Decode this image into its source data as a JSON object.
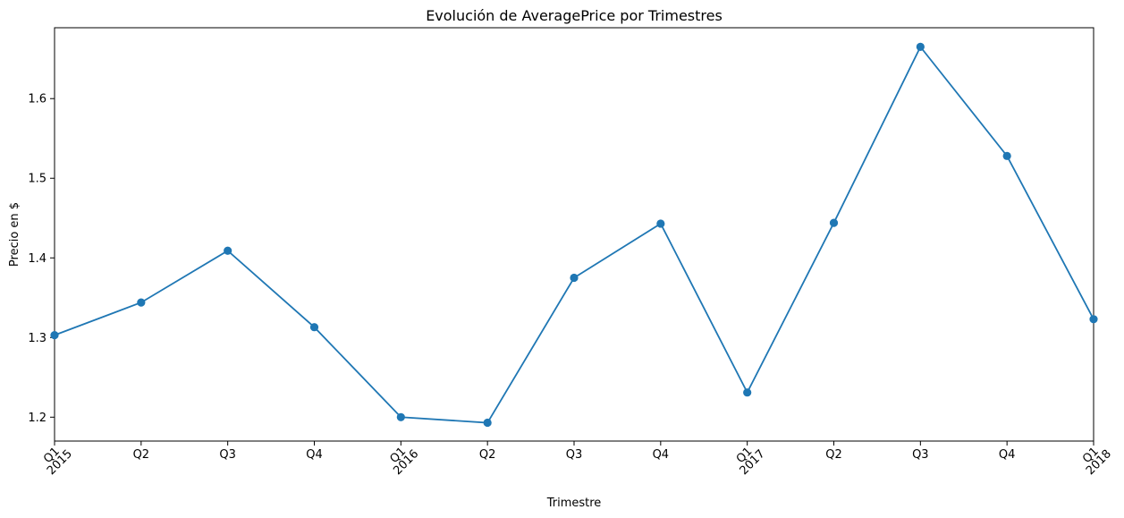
{
  "chart_data": {
    "type": "line",
    "title": "Evolución de AveragePrice por Trimestres",
    "xlabel": "Trimestre",
    "ylabel": "Precio en $",
    "categories": [
      "Q1\n2015",
      "Q2",
      "Q3",
      "Q4",
      "Q1\n2016",
      "Q2",
      "Q3",
      "Q4",
      "Q1\n2017",
      "Q2",
      "Q3",
      "Q4",
      "Q1\n2018"
    ],
    "x_tick_labels": [
      {
        "quarter": "Q1",
        "year": "2015"
      },
      {
        "quarter": "Q2",
        "year": ""
      },
      {
        "quarter": "Q3",
        "year": ""
      },
      {
        "quarter": "Q4",
        "year": ""
      },
      {
        "quarter": "Q1",
        "year": "2016"
      },
      {
        "quarter": "Q2",
        "year": ""
      },
      {
        "quarter": "Q3",
        "year": ""
      },
      {
        "quarter": "Q4",
        "year": ""
      },
      {
        "quarter": "Q1",
        "year": "2017"
      },
      {
        "quarter": "Q2",
        "year": ""
      },
      {
        "quarter": "Q3",
        "year": ""
      },
      {
        "quarter": "Q4",
        "year": ""
      },
      {
        "quarter": "Q1",
        "year": "2018"
      }
    ],
    "series": [
      {
        "values": [
          1.303,
          1.344,
          1.409,
          1.313,
          1.2,
          1.193,
          1.375,
          1.443,
          1.231,
          1.444,
          1.665,
          1.528,
          1.323
        ],
        "color": "#1f77b4",
        "marker": "circle"
      }
    ],
    "ylim": [
      1.17,
      1.689
    ],
    "y_ticks": [
      "1.2",
      "1.3",
      "1.4",
      "1.5",
      "1.6"
    ],
    "grid": false,
    "legend": "none"
  }
}
